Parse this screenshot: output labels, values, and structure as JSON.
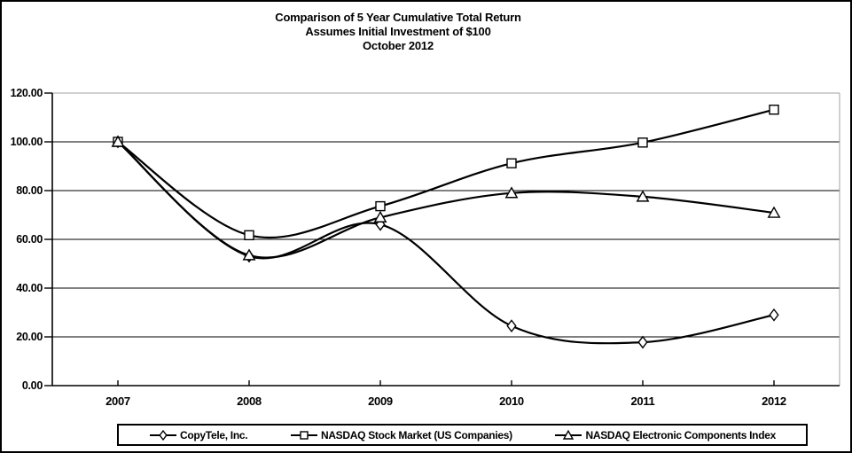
{
  "chart_data": {
    "type": "line",
    "title_lines": [
      "Comparison of 5 Year Cumulative Total Return",
      "Assumes Initial Investment of $100",
      "October 2012"
    ],
    "x_categories": [
      "2007",
      "2008",
      "2009",
      "2010",
      "2011",
      "2012"
    ],
    "y_tick_labels": [
      "0.00",
      "20.00",
      "40.00",
      "60.00",
      "80.00",
      "100.00",
      "120.00"
    ],
    "y_tick_values": [
      0,
      20,
      40,
      60,
      80,
      100,
      120
    ],
    "ylim": [
      0,
      120
    ],
    "grid": "horizontal",
    "smooth_lines": true,
    "legend_position": "bottom",
    "line_color": "#000000",
    "marker_fill": "#ffffff",
    "grid_color": "#000000",
    "top_border_color": "#a0a0a0",
    "series": [
      {
        "name": "CopyTele, Inc.",
        "marker": "diamond",
        "values": [
          100,
          53.1,
          66.1,
          24.5,
          17.8,
          29.0
        ]
      },
      {
        "name": "NASDAQ Stock Market (US Companies)",
        "marker": "square",
        "values": [
          100,
          61.7,
          73.6,
          91.2,
          99.7,
          113.2
        ]
      },
      {
        "name": "NASDAQ Electronic Components Index",
        "marker": "triangle",
        "values": [
          100,
          53.5,
          69.0,
          79.0,
          77.5,
          70.9
        ]
      }
    ]
  }
}
